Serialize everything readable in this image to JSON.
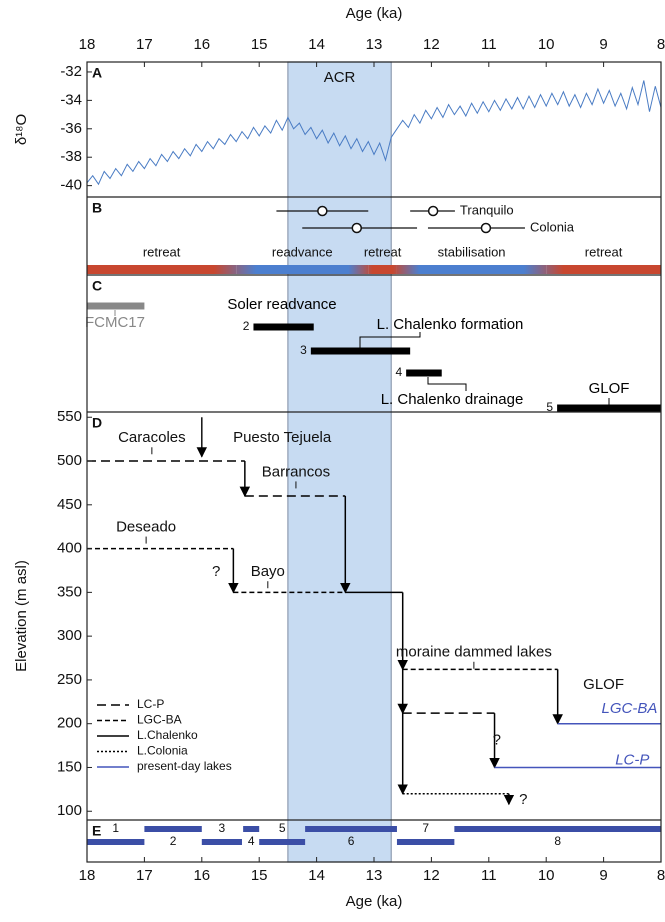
{
  "chart_data": [
    {
      "type": "line",
      "panel": "A",
      "ylabel": "δ¹⁸O",
      "xlabel": "Age (ka)",
      "xlim": [
        18,
        8
      ],
      "xticks": [
        18,
        17,
        16,
        15,
        14,
        13,
        12,
        11,
        10,
        9,
        8
      ],
      "ylim": [
        -40.8,
        -31.3
      ],
      "yticks": [
        -32,
        -34,
        -36,
        -38,
        -40
      ],
      "shade": {
        "label": "ACR",
        "from": 14.5,
        "to": 12.7,
        "color": "#c7dbf2"
      },
      "series": [
        {
          "color": "#4a7cc4",
          "x": [
            18,
            17.9,
            17.8,
            17.7,
            17.6,
            17.5,
            17.4,
            17.3,
            17.2,
            17.1,
            17,
            16.9,
            16.8,
            16.7,
            16.6,
            16.5,
            16.4,
            16.3,
            16.2,
            16.1,
            16,
            15.9,
            15.8,
            15.7,
            15.6,
            15.5,
            15.4,
            15.3,
            15.2,
            15.1,
            15,
            14.9,
            14.8,
            14.7,
            14.6,
            14.5,
            14.4,
            14.3,
            14.2,
            14.1,
            14,
            13.9,
            13.8,
            13.7,
            13.6,
            13.5,
            13.4,
            13.3,
            13.2,
            13.1,
            13,
            12.9,
            12.8,
            12.7,
            12.6,
            12.5,
            12.4,
            12.3,
            12.2,
            12.1,
            12,
            11.9,
            11.8,
            11.7,
            11.6,
            11.5,
            11.4,
            11.3,
            11.2,
            11.1,
            11,
            10.9,
            10.8,
            10.7,
            10.6,
            10.5,
            10.4,
            10.3,
            10.2,
            10.1,
            10,
            9.9,
            9.8,
            9.7,
            9.6,
            9.5,
            9.4,
            9.3,
            9.2,
            9.1,
            9,
            8.9,
            8.8,
            8.7,
            8.6,
            8.5,
            8.4,
            8.3,
            8.2,
            8.1,
            8
          ],
          "values": [
            -39.8,
            -39.3,
            -39.9,
            -39.0,
            -39.5,
            -38.8,
            -39.3,
            -38.5,
            -39.0,
            -38.3,
            -38.8,
            -38.1,
            -38.6,
            -37.8,
            -38.3,
            -37.6,
            -38.1,
            -37.4,
            -37.9,
            -37.1,
            -37.6,
            -36.9,
            -37.4,
            -36.7,
            -37.1,
            -36.4,
            -36.9,
            -36.2,
            -36.7,
            -35.9,
            -36.5,
            -35.8,
            -36.3,
            -35.4,
            -36.1,
            -35.2,
            -36.0,
            -35.6,
            -36.4,
            -35.9,
            -36.7,
            -36.1,
            -37.0,
            -36.3,
            -37.2,
            -36.5,
            -37.4,
            -36.7,
            -37.6,
            -36.9,
            -37.8,
            -37.0,
            -38.2,
            -36.6,
            -36.0,
            -35.4,
            -35.9,
            -35.0,
            -35.6,
            -34.7,
            -35.3,
            -34.5,
            -35.2,
            -34.3,
            -35.0,
            -34.4,
            -35.1,
            -34.2,
            -34.9,
            -34.1,
            -34.8,
            -34.0,
            -34.7,
            -33.9,
            -34.6,
            -33.8,
            -34.6,
            -33.7,
            -34.5,
            -33.6,
            -34.4,
            -33.5,
            -34.3,
            -33.4,
            -34.4,
            -33.6,
            -34.5,
            -33.5,
            -34.3,
            -33.2,
            -34.2,
            -33.3,
            -34.4,
            -33.5,
            -34.6,
            -33.1,
            -34.3,
            -32.6,
            -34.8,
            -33.0,
            -34.5
          ]
        }
      ]
    },
    {
      "type": "range",
      "panel": "B",
      "ranges": [
        {
          "from": 14.7,
          "center": 13.9,
          "to": 13.1
        },
        {
          "from": 14.25,
          "center": 13.3,
          "to": 12.25
        },
        {
          "from": 12.37,
          "center": 11.97,
          "to": 11.59,
          "label": "Tranquilo"
        },
        {
          "from": 12.06,
          "center": 11.05,
          "to": 10.37,
          "label": "Colonia"
        }
      ],
      "stages": [
        {
          "label": "retreat",
          "from": 18,
          "to": 15.4,
          "color": "#c8472f"
        },
        {
          "label": "readvance",
          "from": 15.4,
          "to": 13.1,
          "color": "#4c7fcf"
        },
        {
          "label": "retreat",
          "from": 13.1,
          "to": 12.6,
          "color": "#c8472f"
        },
        {
          "label": "stabilisation",
          "from": 12.6,
          "to": 10,
          "color": "#4c7fcf"
        },
        {
          "label": "retreat",
          "from": 10,
          "to": 8,
          "color": "#c8472f"
        }
      ]
    },
    {
      "type": "timeline",
      "panel": "C",
      "bars": [
        {
          "label": "FCMC17",
          "from": 18,
          "to": 17,
          "color": "#888888"
        },
        {
          "number": "2",
          "label": "Soler readvance",
          "from": 15.1,
          "to": 14.05,
          "color": "#000000"
        },
        {
          "number": "3",
          "label": "L. Chalenko formation",
          "from": 14.1,
          "to": 12.37,
          "color": "#000000"
        },
        {
          "number": "4",
          "label": "L. Chalenko drainage",
          "from": 12.44,
          "to": 11.82,
          "color": "#000000"
        },
        {
          "number": "5",
          "label": "GLOF",
          "from": 9.81,
          "to": 8,
          "color": "#000000"
        }
      ]
    },
    {
      "type": "level",
      "panel": "D",
      "ylabel": "Elevation (m asl)",
      "ylim": [
        90,
        556
      ],
      "yticks": [
        100,
        150,
        200,
        250,
        300,
        350,
        400,
        450,
        500,
        550
      ],
      "legend": "lower left",
      "series": [
        {
          "name": "LC-P",
          "style": "long-dash",
          "color": "#000000",
          "paths": [
            {
              "x": [
                18,
                15.25,
                15.25,
                13.5,
                13.5
              ],
              "values": [
                500,
                500,
                460,
                460,
                350
              ]
            },
            {
              "x": [
                12.5,
                10.9,
                10.9
              ],
              "values": [
                212,
                212,
                150
              ]
            }
          ]
        },
        {
          "name": "LGC-BA",
          "style": "short-dash",
          "color": "#000000",
          "paths": [
            {
              "x": [
                18,
                15.45,
                15.45,
                13.5
              ],
              "values": [
                400,
                400,
                350,
                350
              ]
            },
            {
              "x": [
                12.5,
                9.8,
                9.8
              ],
              "values": [
                262,
                262,
                200
              ]
            }
          ]
        },
        {
          "name": "L.Chalenko",
          "style": "solid",
          "color": "#000000",
          "paths": [
            {
              "x": [
                13.5,
                12.5,
                12.5,
                12.5,
                12.5
              ],
              "values": [
                350,
                350,
                262,
                212,
                120
              ]
            }
          ]
        },
        {
          "name": "L.Colonia",
          "style": "dotted",
          "color": "#000000",
          "paths": [
            {
              "x": [
                12.5,
                10.65,
                10.65
              ],
              "values": [
                120,
                120,
                108
              ]
            }
          ]
        },
        {
          "name": "present-day lakes",
          "style": "solid",
          "color": "#4455bb",
          "paths": [
            {
              "x": [
                9.8,
                8
              ],
              "values": [
                200,
                200
              ]
            },
            {
              "x": [
                10.9,
                8
              ],
              "values": [
                150,
                150
              ]
            }
          ]
        }
      ],
      "annotations": [
        {
          "text": "Caracoles",
          "x": 16.87,
          "y": 526,
          "tick": true
        },
        {
          "text": "Puesto Tejuela",
          "x": 14.6,
          "y": 526,
          "arrow": {
            "x": 16,
            "from": 550,
            "to": 505
          }
        },
        {
          "text": "Barrancos",
          "x": 14.36,
          "y": 487,
          "tick": true
        },
        {
          "text": "Deseado",
          "x": 16.97,
          "y": 424,
          "tick": true
        },
        {
          "text": "Bayo",
          "x": 14.85,
          "y": 373,
          "tick": true
        },
        {
          "text": "?",
          "x": 15.75,
          "y": 373
        },
        {
          "text": "moraine dammed lakes",
          "x": 11.26,
          "y": 281,
          "tick": true
        },
        {
          "text": "GLOF",
          "x": 9.0,
          "y": 244
        },
        {
          "text": "LGC-BA",
          "x": 8.55,
          "y": 217,
          "italic": true,
          "color": "#4455bb"
        },
        {
          "text": "LC-P",
          "x": 8.5,
          "y": 158,
          "italic": true,
          "color": "#4455bb"
        },
        {
          "text": "?",
          "x": 10.86,
          "y": 181
        },
        {
          "text": "?",
          "x": 10.4,
          "y": 113
        }
      ]
    },
    {
      "type": "period",
      "panel": "E",
      "xlabel": "Age (ka)",
      "xlim": [
        18,
        8
      ],
      "xticks": [
        18,
        17,
        16,
        15,
        14,
        13,
        12,
        11,
        10,
        9,
        8
      ],
      "color": "#3b4ea6",
      "bars": [
        {
          "label": "1",
          "from": 18,
          "to": 17
        },
        {
          "label": "2",
          "from": 17,
          "to": 16
        },
        {
          "label": "3",
          "from": 16,
          "to": 15.3
        },
        {
          "label": "4",
          "from": 15.28,
          "to": 15
        },
        {
          "label": "5",
          "from": 15,
          "to": 14.2
        },
        {
          "label": "6",
          "from": 14.2,
          "to": 12.6
        },
        {
          "label": "7",
          "from": 12.6,
          "to": 11.6
        },
        {
          "label": "8",
          "from": 11.6,
          "to": 8
        }
      ]
    }
  ]
}
